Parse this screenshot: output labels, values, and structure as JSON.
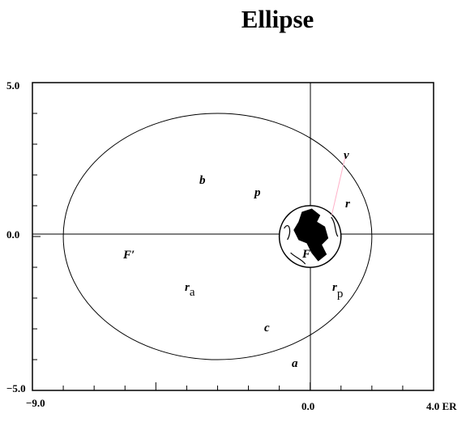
{
  "title": "Ellipse",
  "axes": {
    "x_min": -9.0,
    "x_max": 4.0,
    "y_min": -5.0,
    "y_max": 5.0,
    "x_tick_labels": [
      "−9.0",
      "0.0",
      "4.0 ER"
    ],
    "y_tick_labels": [
      "5.0",
      "0.0",
      "−5.0"
    ]
  },
  "ellipse": {
    "center_x": -3.0,
    "center_y": 0.0,
    "semi_major_a": 5.0,
    "semi_minor_b": 4.0,
    "focal_c": 3.0
  },
  "earth_radius": 1.0,
  "satellite": {
    "x": 1.15,
    "y": 2.65
  },
  "labels": {
    "v": "v",
    "b": "b",
    "p": "p",
    "r": "r",
    "F_prime": "F′",
    "F": "F",
    "ra_main": "r",
    "ra_sub": "a",
    "rp_main": "r",
    "rp_sub": "p",
    "c": "c",
    "a": "a"
  },
  "colors": {
    "line": "#000000",
    "accent": "#ffb0c8"
  }
}
